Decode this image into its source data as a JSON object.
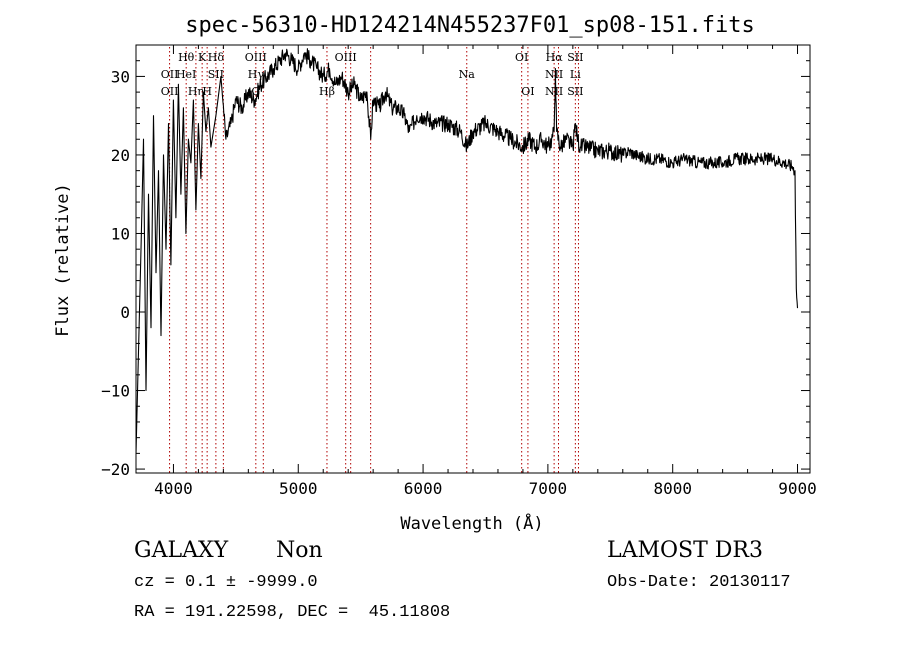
{
  "chart_data": {
    "type": "line",
    "title": "spec-56310-HD124214N455237F01_sp08-151.fits",
    "xlabel": "Wavelength (Å)",
    "ylabel": "Flux (relative)",
    "xlim": [
      3700,
      9100
    ],
    "ylim": [
      -20.5,
      34
    ],
    "xticks": [
      4000,
      5000,
      6000,
      7000,
      8000,
      9000
    ],
    "yticks": [
      -20,
      -10,
      0,
      10,
      20,
      30
    ],
    "xtick_labels": [
      "4000",
      "5000",
      "6000",
      "7000",
      "8000",
      "9000"
    ],
    "ytick_labels": [
      "−20",
      "−10",
      "0",
      "10",
      "20",
      "30"
    ],
    "series": [
      {
        "name": "spectrum",
        "x": [
          3700,
          3720,
          3740,
          3760,
          3780,
          3800,
          3820,
          3840,
          3860,
          3880,
          3900,
          3920,
          3940,
          3960,
          3980,
          4000,
          4020,
          4040,
          4060,
          4080,
          4100,
          4120,
          4140,
          4160,
          4180,
          4200,
          4220,
          4240,
          4260,
          4280,
          4300,
          4340,
          4380,
          4420,
          4460,
          4500,
          4550,
          4600,
          4650,
          4700,
          4750,
          4800,
          4850,
          4900,
          4950,
          5000,
          5050,
          5100,
          5150,
          5200,
          5250,
          5300,
          5350,
          5400,
          5450,
          5500,
          5550,
          5580,
          5600,
          5650,
          5700,
          5750,
          5800,
          5850,
          5890,
          5950,
          6000,
          6100,
          6200,
          6300,
          6350,
          6400,
          6500,
          6600,
          6700,
          6800,
          6850,
          6900,
          6950,
          7000,
          7030,
          7050,
          7060,
          7070,
          7100,
          7150,
          7200,
          7220,
          7240,
          7260,
          7300,
          7400,
          7500,
          7600,
          7650,
          7700,
          7800,
          7900,
          8000,
          8100,
          8200,
          8300,
          8400,
          8500,
          8600,
          8700,
          8800,
          8900,
          8960,
          8980,
          8990,
          9000
        ],
        "y": [
          -18,
          -5,
          8,
          22,
          -10,
          15,
          -2,
          25,
          5,
          18,
          -3,
          20,
          8,
          24,
          6,
          27,
          12,
          29,
          15,
          26,
          10,
          22,
          19,
          27,
          13,
          24,
          17,
          28,
          23,
          26,
          21,
          25,
          30,
          22,
          24,
          27,
          26,
          28,
          27,
          29,
          30,
          31,
          32,
          33,
          32,
          31,
          33,
          32,
          31,
          30,
          31,
          29,
          30,
          28,
          29,
          27,
          28,
          22,
          27,
          26,
          28,
          26,
          26,
          25,
          23,
          25,
          25,
          24,
          24,
          23,
          21,
          23,
          24,
          23,
          22,
          21,
          22,
          21,
          22,
          21,
          22,
          23,
          31,
          23,
          21,
          22,
          21,
          24,
          22,
          21,
          21,
          20.5,
          20.5,
          20,
          20.5,
          20,
          19.5,
          19.5,
          19,
          19.5,
          19,
          19,
          19,
          19.5,
          19.5,
          19.5,
          19.5,
          19,
          18.5,
          18,
          3,
          0.5
        ]
      }
    ],
    "line_markers": [
      {
        "wavelength": 3969,
        "labels": [
          "OII",
          "OII"
        ],
        "tiers": [
          1,
          2
        ]
      },
      {
        "wavelength": 4102,
        "labels": [
          "Hθ",
          "HeI"
        ],
        "tiers": [
          0,
          1
        ]
      },
      {
        "wavelength": 4180,
        "labels": [
          "Hη"
        ],
        "tiers": [
          2
        ]
      },
      {
        "wavelength": 4230,
        "labels": [
          "K"
        ],
        "tiers": [
          0
        ]
      },
      {
        "wavelength": 4270,
        "labels": [
          "H"
        ],
        "tiers": [
          2
        ]
      },
      {
        "wavelength": 4340,
        "labels": [
          "Hδ",
          "SII"
        ],
        "tiers": [
          0,
          1
        ]
      },
      {
        "wavelength": 4400,
        "labels": [],
        "tiers": []
      },
      {
        "wavelength": 4660,
        "labels": [
          "OIII",
          "Hγ",
          "G"
        ],
        "tiers": [
          0,
          1,
          2
        ]
      },
      {
        "wavelength": 4720,
        "labels": [],
        "tiers": []
      },
      {
        "wavelength": 5230,
        "labels": [
          "Hβ"
        ],
        "tiers": [
          2
        ]
      },
      {
        "wavelength": 5380,
        "labels": [
          "OIII"
        ],
        "tiers": [
          0
        ]
      },
      {
        "wavelength": 5420,
        "labels": [],
        "tiers": []
      },
      {
        "wavelength": 5580,
        "labels": [],
        "tiers": []
      },
      {
        "wavelength": 6350,
        "labels": [
          "Na"
        ],
        "tiers": [
          1
        ]
      },
      {
        "wavelength": 6790,
        "labels": [
          "OI"
        ],
        "tiers": [
          0
        ]
      },
      {
        "wavelength": 6840,
        "labels": [
          "OI"
        ],
        "tiers": [
          2
        ]
      },
      {
        "wavelength": 7050,
        "labels": [
          "Hα",
          "NII",
          "NII"
        ],
        "tiers": [
          0,
          1,
          2
        ]
      },
      {
        "wavelength": 7085,
        "labels": [],
        "tiers": []
      },
      {
        "wavelength": 7220,
        "labels": [
          "SII",
          "Li",
          "SII"
        ],
        "tiers": [
          0,
          1,
          2
        ]
      },
      {
        "wavelength": 7245,
        "labels": [],
        "tiers": []
      }
    ]
  },
  "info": {
    "object_class": "GALAXY",
    "subclass": "Non",
    "survey": "LAMOST DR3",
    "cz_line": "cz = 0.1 ± -9999.0",
    "obs_date_line": "Obs-Date: 20130117",
    "radec_line": "RA = 191.22598, DEC =  45.11808"
  }
}
